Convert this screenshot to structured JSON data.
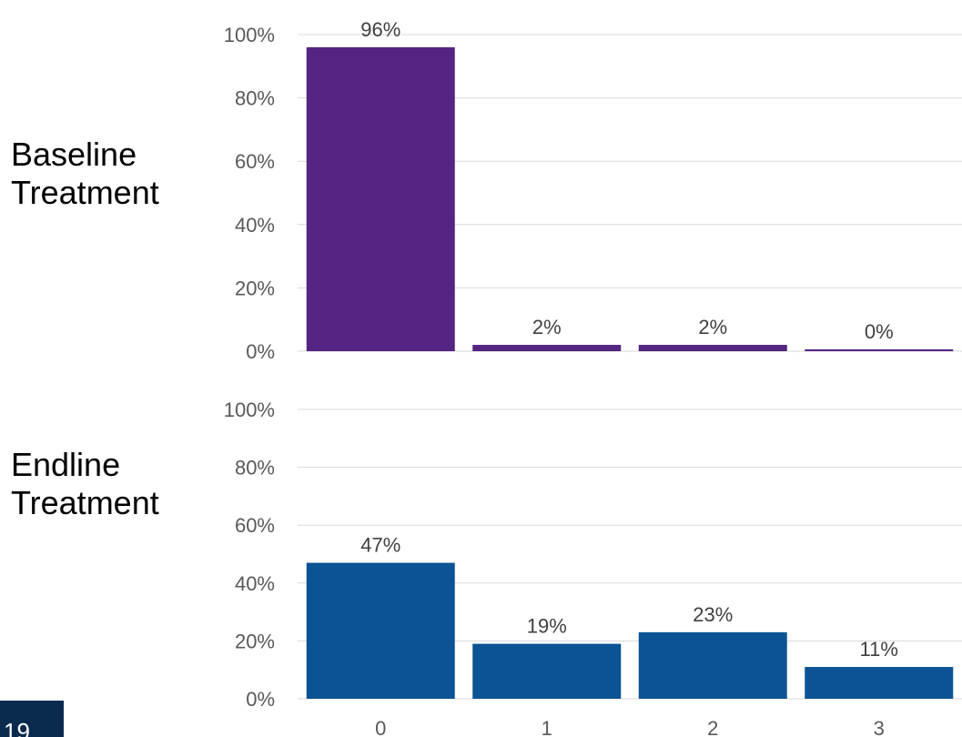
{
  "labels": {
    "top_panel": "Baseline\nTreatment",
    "bottom_panel": "Endline\nTreatment"
  },
  "page_number": "19",
  "colors": {
    "top": "#542582",
    "bottom": "#0b5394",
    "badge": "#0b2a4f"
  },
  "chart_data": [
    {
      "type": "bar",
      "categories": [
        "0",
        "1",
        "2",
        "3"
      ],
      "values": [
        96,
        2,
        2,
        0
      ],
      "data_labels": [
        "96%",
        "2%",
        "2%",
        "0%"
      ],
      "ylim": [
        0,
        100
      ],
      "yticks": [
        "0%",
        "20%",
        "40%",
        "60%",
        "80%",
        "100%"
      ],
      "grid": true
    },
    {
      "type": "bar",
      "categories": [
        "0",
        "1",
        "2",
        "3"
      ],
      "values": [
        47,
        19,
        23,
        11
      ],
      "data_labels": [
        "47%",
        "19%",
        "23%",
        "11%"
      ],
      "ylim": [
        0,
        100
      ],
      "yticks": [
        "0%",
        "20%",
        "40%",
        "60%",
        "80%",
        "100%"
      ],
      "grid": true
    }
  ]
}
